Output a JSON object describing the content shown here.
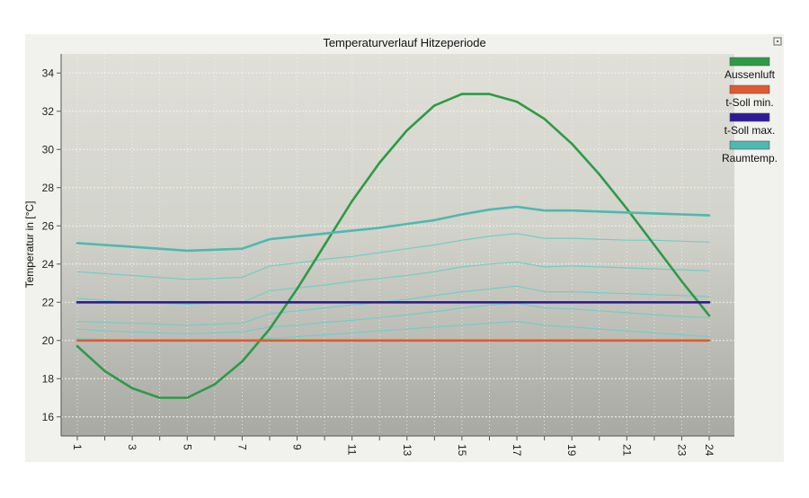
{
  "chart_data": {
    "type": "line",
    "title": "Temperaturverlauf Hitzeperiode",
    "xlabel": "",
    "ylabel": "Temperatur in [°C]",
    "xlim": [
      1,
      24
    ],
    "ylim": [
      15,
      35
    ],
    "x_ticks": [
      1,
      3,
      5,
      7,
      9,
      11,
      13,
      15,
      17,
      19,
      21,
      23,
      24
    ],
    "y_ticks": [
      16,
      18,
      20,
      22,
      24,
      26,
      28,
      30,
      32,
      34
    ],
    "grid": true,
    "legend_position": "right",
    "x": [
      1,
      2,
      3,
      4,
      5,
      6,
      7,
      8,
      9,
      10,
      11,
      12,
      13,
      14,
      15,
      16,
      17,
      18,
      19,
      20,
      21,
      22,
      23,
      24
    ],
    "series": [
      {
        "name": "Aussenluft",
        "color": "#2e9a45",
        "width": 2.6,
        "legend": true,
        "values": [
          19.7,
          18.4,
          17.5,
          17.0,
          17.0,
          17.7,
          18.9,
          20.6,
          22.7,
          25.0,
          27.3,
          29.3,
          31.0,
          32.3,
          32.9,
          32.9,
          32.5,
          31.6,
          30.3,
          28.7,
          26.9,
          25.0,
          23.1,
          21.3
        ]
      },
      {
        "name": "t-Soll min.",
        "color": "#e05a2e",
        "width": 2.6,
        "legend": true,
        "values": [
          20,
          20,
          20,
          20,
          20,
          20,
          20,
          20,
          20,
          20,
          20,
          20,
          20,
          20,
          20,
          20,
          20,
          20,
          20,
          20,
          20,
          20,
          20,
          20
        ]
      },
      {
        "name": "t-Soll max.",
        "color": "#2e1b9a",
        "width": 2.6,
        "legend": true,
        "values": [
          22,
          22,
          22,
          22,
          22,
          22,
          22,
          22,
          22,
          22,
          22,
          22,
          22,
          22,
          22,
          22,
          22,
          22,
          22,
          22,
          22,
          22,
          22,
          22
        ]
      },
      {
        "name": "Raumtemp.",
        "color": "#4fb8b0",
        "width": 2.6,
        "legend": true,
        "values": [
          25.1,
          25.0,
          24.9,
          24.8,
          24.7,
          24.75,
          24.8,
          25.3,
          25.45,
          25.6,
          25.75,
          25.9,
          26.1,
          26.3,
          26.6,
          26.85,
          27.0,
          26.8,
          26.8,
          26.75,
          26.7,
          26.65,
          26.6,
          26.55
        ]
      },
      {
        "name": "",
        "color": "#74ccc6",
        "width": 1.2,
        "legend": false,
        "values": [
          23.6,
          23.5,
          23.4,
          23.3,
          23.2,
          23.25,
          23.3,
          23.9,
          24.05,
          24.25,
          24.4,
          24.6,
          24.8,
          25.0,
          25.25,
          25.45,
          25.6,
          25.35,
          25.35,
          25.3,
          25.25,
          25.25,
          25.2,
          25.15
        ]
      },
      {
        "name": "",
        "color": "#74ccc6",
        "width": 1.2,
        "legend": false,
        "values": [
          22.2,
          22.1,
          22.0,
          21.95,
          21.9,
          21.95,
          22.0,
          22.6,
          22.75,
          22.9,
          23.1,
          23.25,
          23.4,
          23.6,
          23.85,
          24.0,
          24.1,
          23.85,
          23.9,
          23.85,
          23.8,
          23.75,
          23.7,
          23.65
        ]
      },
      {
        "name": "",
        "color": "#74ccc6",
        "width": 1.2,
        "legend": false,
        "values": [
          21.0,
          20.95,
          20.9,
          20.85,
          20.8,
          20.85,
          20.9,
          21.4,
          21.55,
          21.7,
          21.85,
          22.0,
          22.15,
          22.35,
          22.55,
          22.7,
          22.85,
          22.55,
          22.55,
          22.5,
          22.45,
          22.4,
          22.35,
          22.3
        ]
      },
      {
        "name": "",
        "color": "#74ccc6",
        "width": 1.2,
        "legend": false,
        "values": [
          20.6,
          20.5,
          20.45,
          20.4,
          20.35,
          20.4,
          20.45,
          20.7,
          20.8,
          20.95,
          21.05,
          21.2,
          21.35,
          21.5,
          21.7,
          21.85,
          21.95,
          21.7,
          21.65,
          21.55,
          21.45,
          21.35,
          21.25,
          21.2
        ]
      },
      {
        "name": "",
        "color": "#74ccc6",
        "width": 1.2,
        "legend": false,
        "values": [
          20.1,
          20.05,
          20.0,
          20.0,
          19.95,
          20.0,
          20.0,
          20.1,
          20.2,
          20.3,
          20.4,
          20.5,
          20.6,
          20.7,
          20.8,
          20.9,
          21.0,
          20.8,
          20.7,
          20.6,
          20.5,
          20.4,
          20.3,
          20.2
        ]
      }
    ]
  }
}
